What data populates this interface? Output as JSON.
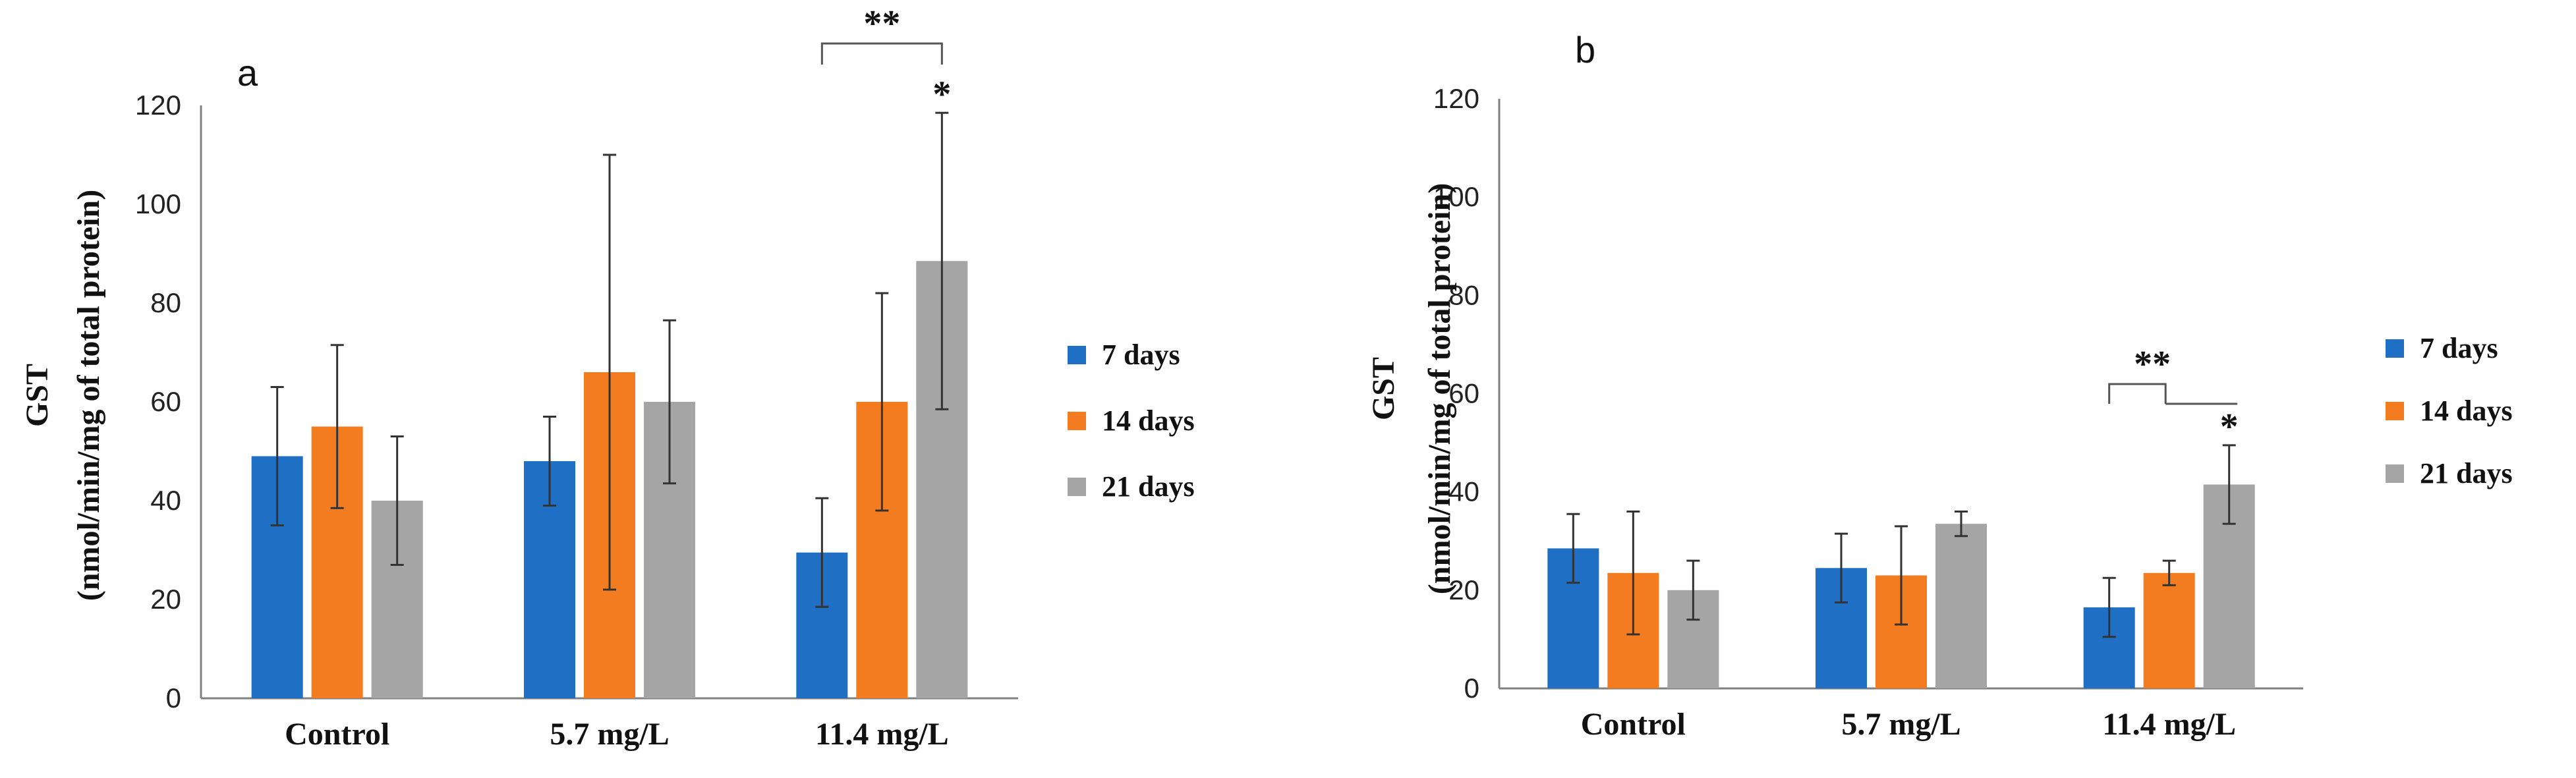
{
  "colors": {
    "7 days": "#1f6fc5",
    "14 days": "#f47c20",
    "21 days": "#a5a5a5",
    "axis": "#808080",
    "error": "#333333"
  },
  "chart_data": [
    {
      "type": "bar",
      "panel": "a",
      "categories": [
        "Control",
        "5.7 mg/L",
        "11.4 mg/L"
      ],
      "series": [
        {
          "name": "7 days",
          "values": [
            49,
            48,
            29.5
          ],
          "errors": [
            14,
            9,
            11
          ]
        },
        {
          "name": "14 days",
          "values": [
            55,
            66,
            60
          ],
          "errors": [
            16.5,
            44,
            22
          ]
        },
        {
          "name": "21 days",
          "values": [
            40,
            60,
            88.5
          ],
          "errors": [
            13,
            16.5,
            30
          ]
        }
      ],
      "ylim": [
        0,
        120
      ],
      "yticks": [
        0,
        20,
        40,
        60,
        80,
        100,
        120
      ],
      "ylabel": [
        "GST",
        "(nmol/min/mg of total protein)"
      ],
      "xlabel": "",
      "legend_position": "right",
      "annotations": {
        "bracket": "**",
        "star": "*"
      }
    },
    {
      "type": "bar",
      "panel": "b",
      "categories": [
        "Control",
        "5.7 mg/L",
        "11.4 mg/L"
      ],
      "series": [
        {
          "name": "7 days",
          "values": [
            28.5,
            24.5,
            16.5
          ],
          "errors": [
            7,
            7,
            6
          ]
        },
        {
          "name": "14 days",
          "values": [
            23.5,
            23,
            23.5
          ],
          "errors": [
            12.5,
            10,
            2.5
          ]
        },
        {
          "name": "21 days",
          "values": [
            20,
            33.5,
            41.5
          ],
          "errors": [
            6,
            2.5,
            8
          ]
        }
      ],
      "ylim": [
        0,
        120
      ],
      "yticks": [
        0,
        20,
        40,
        60,
        80,
        100,
        120
      ],
      "ylabel": [
        "GST",
        "(nmol/min/mg of total protein)"
      ],
      "xlabel": "",
      "legend_position": "right",
      "annotations": {
        "bracket": "**",
        "star": "*"
      }
    }
  ]
}
